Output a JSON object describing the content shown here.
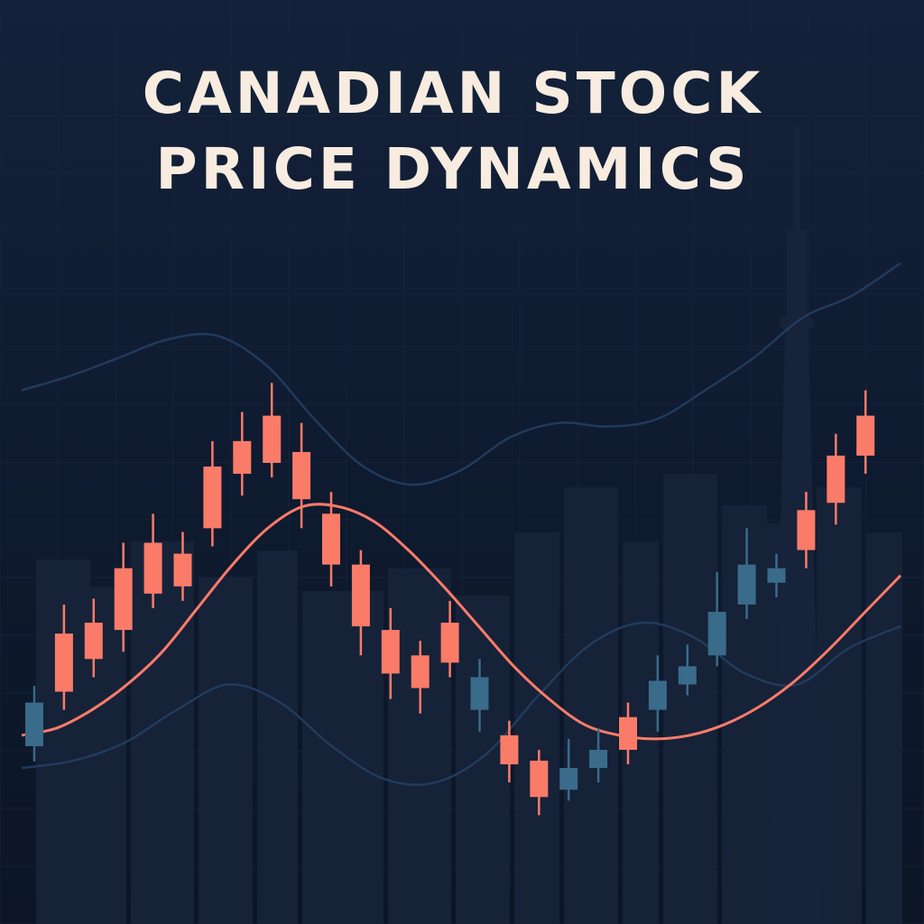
{
  "title": {
    "line1": "CANADIAN STOCK",
    "line2": "PRICE DYNAMICS"
  },
  "colors": {
    "background": "#0f1a2c",
    "skyline": "#16233a",
    "grid": "#1a2942",
    "up": "#fb7b69",
    "down": "#3a6b8a",
    "moving_average": "#fb7b69",
    "band": "#243e60",
    "title": "#f7ecdf"
  },
  "chart_data": {
    "type": "candlestick",
    "title": "CANADIAN STOCK PRICE DYNAMICS",
    "grid": true,
    "legend": "none",
    "xlabel": "",
    "ylabel": "",
    "ylim": [
      0,
      100
    ],
    "candles": [
      {
        "open": 21.5,
        "close": 27.5,
        "high": 29.8,
        "low": 19.4,
        "direction": "down"
      },
      {
        "open": 29.0,
        "close": 37.0,
        "high": 41.0,
        "low": 26.5,
        "direction": "up"
      },
      {
        "open": 33.5,
        "close": 38.5,
        "high": 41.8,
        "low": 31.0,
        "direction": "up"
      },
      {
        "open": 37.5,
        "close": 46.0,
        "high": 49.5,
        "low": 34.5,
        "direction": "up"
      },
      {
        "open": 42.5,
        "close": 49.5,
        "high": 53.5,
        "low": 40.5,
        "direction": "up"
      },
      {
        "open": 43.5,
        "close": 48.0,
        "high": 51.0,
        "low": 41.5,
        "direction": "up"
      },
      {
        "open": 51.5,
        "close": 60.0,
        "high": 63.5,
        "low": 49.0,
        "direction": "up"
      },
      {
        "open": 59.0,
        "close": 63.5,
        "high": 67.5,
        "low": 56.0,
        "direction": "up"
      },
      {
        "open": 60.5,
        "close": 67.0,
        "high": 71.5,
        "low": 58.5,
        "direction": "up"
      },
      {
        "open": 55.5,
        "close": 62.0,
        "high": 66.0,
        "low": 51.5,
        "direction": "up"
      },
      {
        "open": 46.5,
        "close": 53.5,
        "high": 56.5,
        "low": 43.5,
        "direction": "up"
      },
      {
        "open": 38.0,
        "close": 46.5,
        "high": 48.5,
        "low": 34.0,
        "direction": "up"
      },
      {
        "open": 31.5,
        "close": 37.5,
        "high": 40.5,
        "low": 28.0,
        "direction": "up"
      },
      {
        "open": 29.5,
        "close": 34.0,
        "high": 36.0,
        "low": 26.0,
        "direction": "up"
      },
      {
        "open": 33.0,
        "close": 38.5,
        "high": 41.5,
        "low": 31.0,
        "direction": "up"
      },
      {
        "open": 26.5,
        "close": 31.0,
        "high": 33.5,
        "low": 23.5,
        "direction": "down"
      },
      {
        "open": 19.0,
        "close": 23.0,
        "high": 25.0,
        "low": 16.5,
        "direction": "up"
      },
      {
        "open": 14.5,
        "close": 19.5,
        "high": 21.0,
        "low": 12.0,
        "direction": "up"
      },
      {
        "open": 15.5,
        "close": 18.5,
        "high": 22.5,
        "low": 14.0,
        "direction": "down"
      },
      {
        "open": 18.5,
        "close": 21.0,
        "high": 24.0,
        "low": 16.5,
        "direction": "down"
      },
      {
        "open": 21.0,
        "close": 25.5,
        "high": 27.5,
        "low": 19.0,
        "direction": "up"
      },
      {
        "open": 26.5,
        "close": 30.5,
        "high": 34.0,
        "low": 23.5,
        "direction": "down"
      },
      {
        "open": 30.0,
        "close": 32.5,
        "high": 35.5,
        "low": 28.5,
        "direction": "down"
      },
      {
        "open": 34.0,
        "close": 40.0,
        "high": 45.5,
        "low": 32.5,
        "direction": "down"
      },
      {
        "open": 41.0,
        "close": 46.5,
        "high": 51.5,
        "low": 39.0,
        "direction": "down"
      },
      {
        "open": 44.0,
        "close": 46.0,
        "high": 48.0,
        "low": 42.0,
        "direction": "down"
      },
      {
        "open": 48.5,
        "close": 54.0,
        "high": 56.5,
        "low": 46.0,
        "direction": "up"
      },
      {
        "open": 55.0,
        "close": 61.5,
        "high": 64.5,
        "low": 52.0,
        "direction": "up"
      },
      {
        "open": 61.5,
        "close": 67.0,
        "high": 70.5,
        "low": 59.0,
        "direction": "up"
      }
    ],
    "moving_average": [
      23.0,
      24.0,
      26.5,
      30.0,
      34.5,
      40.5,
      46.5,
      51.5,
      54.5,
      54.5,
      52.5,
      48.5,
      43.5,
      38.0,
      32.5,
      28.0,
      24.5,
      23.0,
      22.5,
      23.0,
      24.5,
      27.0,
      30.5,
      35.0,
      40.0,
      45.0
    ],
    "upper_band": [
      70.5,
      72.5,
      75.0,
      77.5,
      78.0,
      74.0,
      66.5,
      60.0,
      57.5,
      59.5,
      64.0,
      66.0,
      65.5,
      66.5,
      70.5,
      75.0,
      80.5,
      83.5,
      88.0
    ],
    "lower_band": [
      18.5,
      19.5,
      22.0,
      26.5,
      30.0,
      27.5,
      21.5,
      17.0,
      16.5,
      20.5,
      28.5,
      35.5,
      38.5,
      36.5,
      31.5,
      30.0,
      35.0,
      38.0
    ]
  }
}
